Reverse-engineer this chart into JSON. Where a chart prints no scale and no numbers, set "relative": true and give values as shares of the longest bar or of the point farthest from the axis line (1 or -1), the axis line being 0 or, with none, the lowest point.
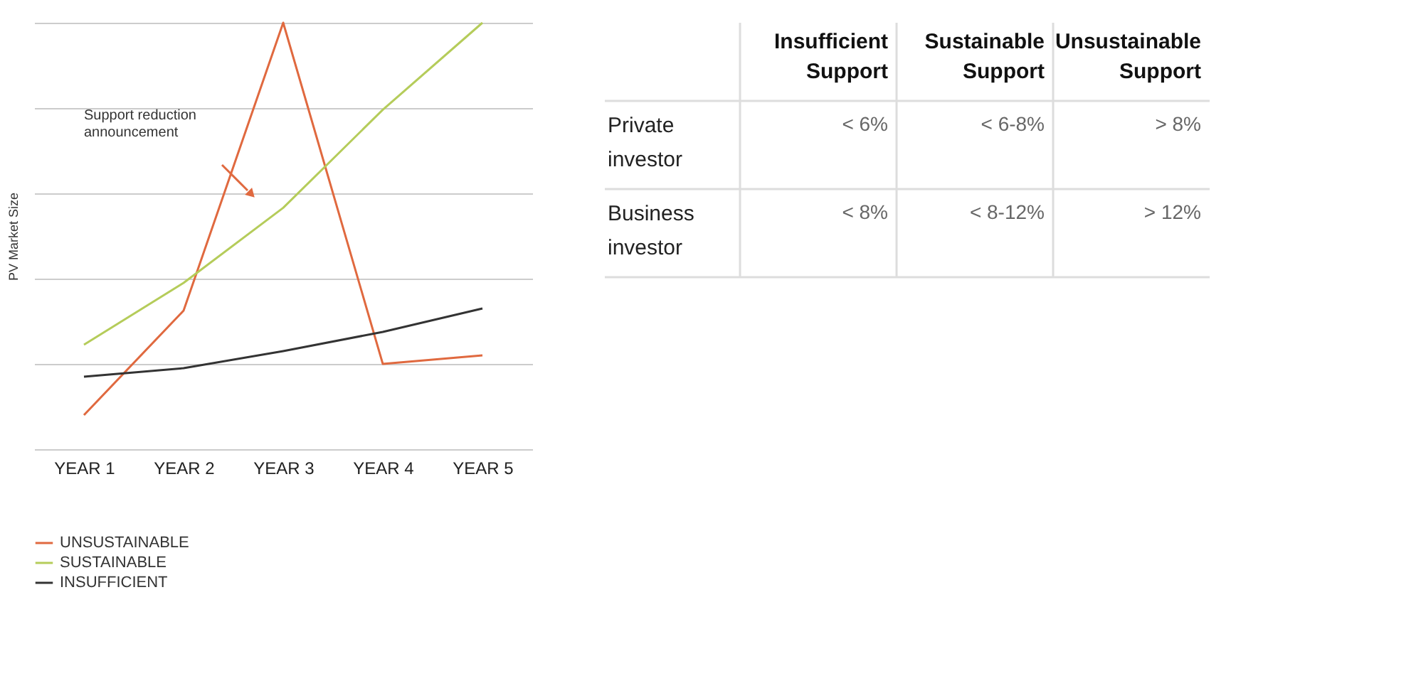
{
  "chart_data": [
    {
      "type": "line",
      "ylabel": "PV Market Size",
      "relative": true,
      "grid": "y",
      "legend": "bottom left",
      "categories": [
        "YEAR 1",
        "YEAR 2",
        "YEAR 3",
        "YEAR 4",
        "YEAR 5"
      ],
      "series": [
        {
          "name": "UNSUSTAINABLE",
          "color": "#e0693f",
          "values": [
            0.08,
            0.325,
            1,
            0.2,
            0.22
          ]
        },
        {
          "name": "SUSTAINABLE",
          "color": "#b5cc5a",
          "values": [
            0.245,
            0.39,
            0.566,
            0.796,
            1
          ]
        },
        {
          "name": "INSUFFICIENT",
          "color": "#333333",
          "values": [
            0.17,
            0.19,
            0.23,
            0.275,
            0.33
          ]
        }
      ],
      "annotations": [
        "Support reduction announcement"
      ]
    },
    {
      "type": "other",
      "categories": [
        "Insufficient Support",
        "Sustainable Support",
        "Unsustainable Support"
      ],
      "y_categories": [
        "Private investor",
        "Business investor"
      ],
      "cell_labels": [
        [
          "< 6%",
          "< 6-8%",
          "> 8%"
        ],
        [
          "< 8%",
          "< 8-12%",
          "> 12%"
        ]
      ]
    }
  ]
}
